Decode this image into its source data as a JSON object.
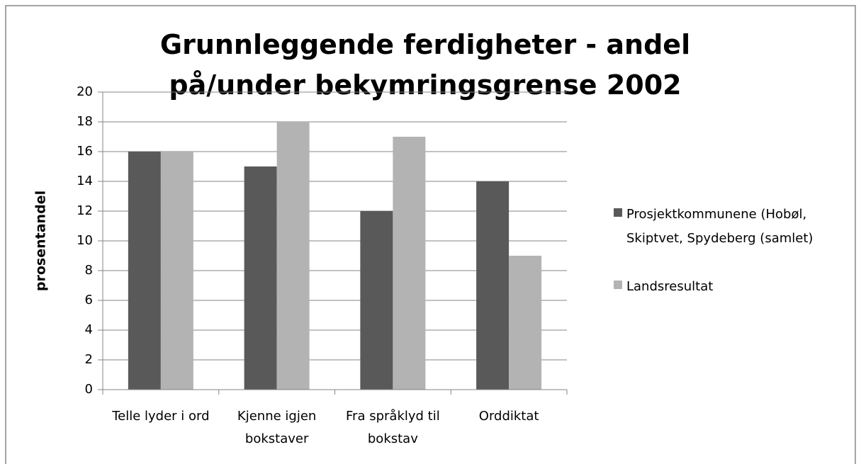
{
  "chart_data": {
    "type": "bar",
    "title": "Grunnleggende ferdigheter - andel på/under bekymringsgrense 2002",
    "ylabel": "prosentandel",
    "categories": [
      "Telle lyder i ord",
      "Kjenne igjen bokstaver",
      "Fra språklyd til bokstav",
      "Orddiktat"
    ],
    "series": [
      {
        "name": "Prosjektkommunene (Hobøl, Skiptvet, Spydeberg (samlet)",
        "color": "#595959",
        "values": [
          16,
          15,
          12,
          14
        ]
      },
      {
        "name": "Landsresultat",
        "color": "#b3b3b3",
        "values": [
          16,
          18,
          17,
          9
        ]
      }
    ],
    "ylim": [
      0,
      20
    ],
    "yticks": [
      0,
      2,
      4,
      6,
      8,
      10,
      12,
      14,
      16,
      18,
      20
    ],
    "grid": true,
    "legend": "right"
  }
}
